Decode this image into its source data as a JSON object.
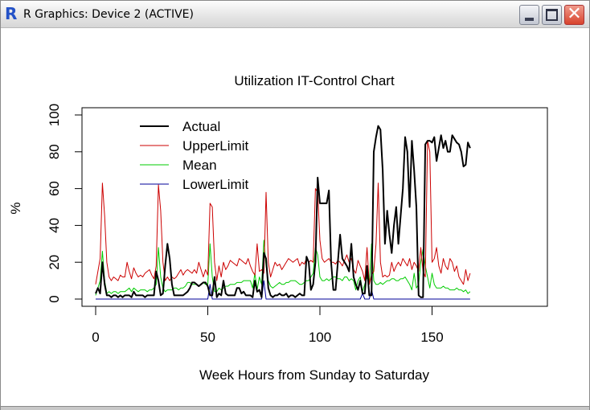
{
  "window": {
    "title": "R Graphics: Device 2 (ACTIVE)",
    "icon": "r-logo-icon",
    "buttons": {
      "minimize": "minimize-icon",
      "maximize": "maximize-icon",
      "close": "close-icon"
    }
  },
  "colors": {
    "actual": "#000000",
    "upper": "#cc0000",
    "mean": "#00cc00",
    "lower": "#000099"
  },
  "chart_data": {
    "type": "line",
    "title": "Utilization IT-Control Chart",
    "xlabel": "Week Hours from Sunday to Saturday",
    "ylabel": "%",
    "xlim": [
      0,
      167
    ],
    "ylim": [
      0,
      100
    ],
    "xticks": [
      0,
      50,
      100,
      150
    ],
    "yticks": [
      0,
      20,
      40,
      60,
      80,
      100
    ],
    "grid": false,
    "legend": {
      "position": "topleft",
      "entries": [
        "Actual",
        "UpperLimit",
        "Mean",
        "LowerLimit"
      ]
    },
    "series": [
      {
        "name": "Actual",
        "color": "#000000",
        "width": 2,
        "values": [
          3,
          6,
          3,
          20,
          8,
          2,
          2,
          1,
          2,
          2,
          1,
          2,
          1,
          2,
          2,
          2,
          1,
          4,
          2,
          2,
          2,
          2,
          1,
          2,
          2,
          2,
          2,
          15,
          10,
          2,
          3,
          18,
          30,
          22,
          8,
          2,
          2,
          2,
          2,
          2,
          3,
          4,
          6,
          9,
          9,
          8,
          7,
          8,
          9,
          9,
          7,
          2,
          2,
          12,
          1,
          3,
          2,
          10,
          3,
          2,
          2,
          2,
          2,
          6,
          6,
          3,
          4,
          2,
          2,
          2,
          1,
          10,
          4,
          5,
          1,
          25,
          22,
          6,
          2,
          1,
          2,
          2,
          3,
          2,
          2,
          3,
          1,
          2,
          2,
          1,
          2,
          3,
          2,
          2,
          23,
          20,
          5,
          8,
          20,
          66,
          52,
          52,
          52,
          52,
          59,
          20,
          5,
          5,
          20,
          35,
          22,
          20,
          18,
          15,
          30,
          12,
          8,
          5,
          10,
          3,
          3,
          18,
          2,
          2,
          80,
          88,
          94,
          92,
          70,
          30,
          48,
          35,
          25,
          40,
          50,
          30,
          45,
          60,
          88,
          80,
          50,
          86,
          70,
          50,
          2,
          1,
          1,
          84,
          86,
          86,
          85,
          88,
          75,
          82,
          89,
          82,
          86,
          80,
          80,
          89,
          87,
          85,
          84,
          80,
          72,
          73,
          85,
          82
        ]
      },
      {
        "name": "UpperLimit",
        "color": "#cc0000",
        "width": 1,
        "values": [
          8,
          15,
          22,
          63,
          45,
          20,
          12,
          10,
          12,
          11,
          10,
          13,
          12,
          12,
          20,
          15,
          11,
          17,
          14,
          12,
          13,
          12,
          14,
          15,
          16,
          13,
          11,
          18,
          62,
          48,
          20,
          10,
          12,
          10,
          12,
          11,
          12,
          14,
          16,
          13,
          15,
          16,
          15,
          14,
          16,
          14,
          20,
          16,
          12,
          16,
          13,
          52,
          50,
          20,
          10,
          18,
          12,
          20,
          16,
          18,
          21,
          20,
          19,
          18,
          22,
          21,
          20,
          19,
          22,
          18,
          15,
          13,
          30,
          15,
          16,
          14,
          58,
          20,
          12,
          16,
          20,
          18,
          19,
          16,
          18,
          20,
          22,
          21,
          20,
          21,
          22,
          18,
          20,
          19,
          22,
          20,
          21,
          20,
          60,
          58,
          32,
          22,
          20,
          21,
          22,
          20,
          20,
          19,
          21,
          20,
          18,
          21,
          24,
          20,
          22,
          16,
          14,
          21,
          18,
          15,
          10,
          28,
          8,
          13,
          15,
          30,
          63,
          20,
          12,
          13,
          12,
          13,
          20,
          15,
          18,
          20,
          18,
          22,
          20,
          18,
          22,
          16,
          20,
          18,
          15,
          28,
          15,
          12,
          86,
          80,
          20,
          22,
          28,
          18,
          14,
          22,
          18,
          16,
          22,
          20,
          15,
          18,
          12,
          10,
          8,
          16,
          10,
          14
        ]
      },
      {
        "name": "Mean",
        "color": "#00cc00",
        "width": 1,
        "values": [
          2,
          6,
          10,
          26,
          10,
          3,
          4,
          3,
          4,
          4,
          3,
          4,
          4,
          4,
          5,
          6,
          4,
          6,
          5,
          4,
          5,
          5,
          5,
          4,
          5,
          5,
          6,
          8,
          28,
          12,
          6,
          4,
          5,
          5,
          5,
          6,
          6,
          5,
          6,
          6,
          7,
          9,
          9,
          8,
          8,
          8,
          7,
          8,
          9,
          8,
          8,
          30,
          12,
          4,
          4,
          6,
          5,
          6,
          7,
          7,
          8,
          8,
          8,
          9,
          9,
          9,
          10,
          10,
          10,
          10,
          6,
          14,
          5,
          12,
          8,
          32,
          18,
          10,
          7,
          6,
          7,
          8,
          9,
          8,
          8,
          9,
          9,
          10,
          10,
          10,
          9,
          8,
          8,
          9,
          10,
          10,
          12,
          14,
          28,
          24,
          12,
          10,
          10,
          11,
          10,
          11,
          12,
          12,
          11,
          11,
          10,
          12,
          12,
          10,
          11,
          10,
          5,
          10,
          12,
          4,
          8,
          12,
          8,
          30,
          10,
          8,
          8,
          9,
          8,
          9,
          10,
          10,
          11,
          11,
          10,
          10,
          11,
          11,
          12,
          10,
          8,
          5,
          14,
          6,
          8,
          20,
          27,
          18,
          12,
          6,
          14,
          8,
          6,
          6,
          6,
          7,
          6,
          6,
          5,
          5,
          5,
          6,
          5,
          5,
          4,
          5,
          3,
          4
        ]
      },
      {
        "name": "LowerLimit",
        "color": "#000099",
        "width": 1,
        "values": [
          0,
          0,
          0,
          0,
          0,
          0,
          0,
          0,
          0,
          0,
          0,
          0,
          0,
          0,
          0,
          0,
          0,
          0,
          0,
          0,
          0,
          0,
          0,
          0,
          0,
          0,
          0,
          0,
          0,
          0,
          0,
          0,
          0,
          0,
          0,
          0,
          0,
          0,
          0,
          0,
          0,
          0,
          0,
          0,
          0,
          0,
          0,
          0,
          0,
          0,
          0,
          8,
          0,
          0,
          0,
          0,
          0,
          0,
          0,
          0,
          0,
          0,
          0,
          0,
          0,
          0,
          0,
          0,
          0,
          0,
          0,
          0,
          0,
          0,
          0,
          10,
          0,
          0,
          0,
          0,
          0,
          0,
          0,
          0,
          0,
          0,
          0,
          0,
          0,
          0,
          0,
          0,
          0,
          0,
          0,
          0,
          0,
          0,
          0,
          0,
          0,
          0,
          0,
          0,
          0,
          0,
          0,
          0,
          0,
          0,
          0,
          0,
          0,
          0,
          0,
          0,
          0,
          0,
          0,
          3,
          0,
          0,
          0,
          5,
          0,
          0,
          0,
          0,
          0,
          0,
          0,
          0,
          0,
          0,
          0,
          0,
          0,
          0,
          0,
          0,
          0,
          0,
          0,
          0,
          0,
          0,
          0,
          0,
          0,
          0,
          0,
          0,
          0,
          0,
          0,
          0,
          0,
          0,
          0,
          0,
          0,
          0,
          0,
          0,
          0,
          0,
          0,
          0
        ]
      }
    ]
  }
}
